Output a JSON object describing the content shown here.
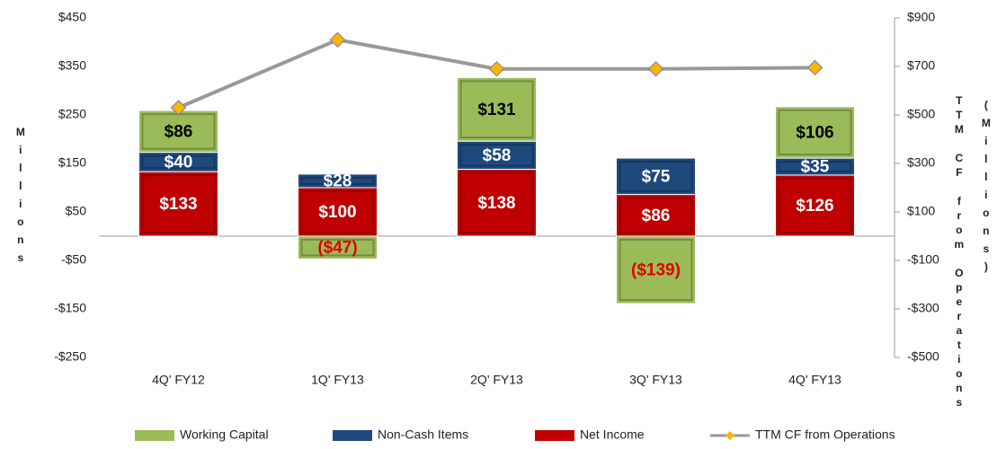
{
  "chart_data": {
    "type": "bar",
    "categories": [
      "4Q' FY12",
      "1Q' FY13",
      "2Q' FY13",
      "3Q' FY13",
      "4Q' FY13"
    ],
    "series": [
      {
        "name": "Working Capital",
        "color": "#9bbb59",
        "values": [
          86,
          -47,
          131,
          -139,
          106
        ],
        "value_labels": [
          "$86",
          "($47)",
          "$131",
          "($139)",
          "$106"
        ]
      },
      {
        "name": "Non-Cash Items",
        "color": "#1f497d",
        "values": [
          40,
          28,
          58,
          75,
          35
        ],
        "value_labels": [
          "$40",
          "$28",
          "$58",
          "$75",
          "$35"
        ]
      },
      {
        "name": "Net Income",
        "color": "#c00000",
        "values": [
          133,
          100,
          138,
          86,
          126
        ],
        "value_labels": [
          "$133",
          "$100",
          "$138",
          "$86",
          "$126"
        ]
      },
      {
        "name": "TTM CF from Operations",
        "type": "line",
        "axis": "y2",
        "color": "#999999",
        "marker_color": "#f5b800",
        "values": [
          530,
          810,
          690,
          690,
          695
        ]
      }
    ],
    "y_label": "Millions",
    "y2_label": "TTM CF from Operations",
    "y2_label_unit": "(Millions)",
    "ylim": [
      -250,
      450
    ],
    "yticks": [
      {
        "value": -250,
        "label": "-$250"
      },
      {
        "value": -150,
        "label": "-$150"
      },
      {
        "value": -50,
        "label": "-$50"
      },
      {
        "value": 50,
        "label": "$50"
      },
      {
        "value": 150,
        "label": "$150"
      },
      {
        "value": 250,
        "label": "$250"
      },
      {
        "value": 350,
        "label": "$350"
      },
      {
        "value": 450,
        "label": "$450"
      }
    ],
    "y2lim": [
      -500,
      900
    ],
    "y2ticks": [
      {
        "value": -500,
        "label": "-$500"
      },
      {
        "value": -300,
        "label": "-$300"
      },
      {
        "value": -100,
        "label": "-$100"
      },
      {
        "value": 100,
        "label": "$100"
      },
      {
        "value": 300,
        "label": "$300"
      },
      {
        "value": 500,
        "label": "$500"
      },
      {
        "value": 700,
        "label": "$700"
      },
      {
        "value": 900,
        "label": "$900"
      }
    ],
    "grid": false,
    "legend": "bottom"
  }
}
